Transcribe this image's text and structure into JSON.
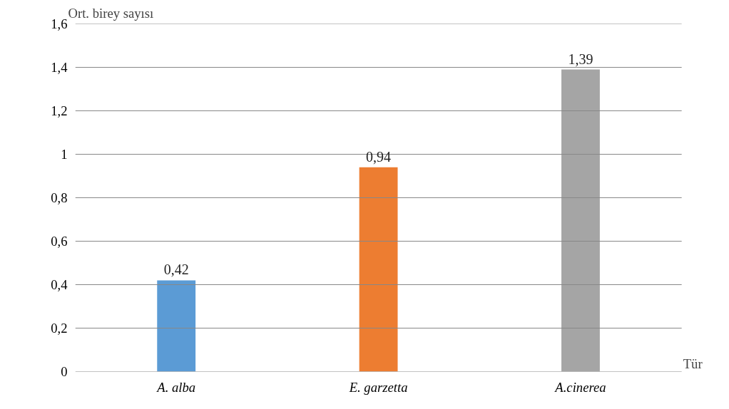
{
  "chart_data": {
    "type": "bar",
    "categories": [
      "A. alba",
      "E. garzetta",
      "A.cinerea"
    ],
    "values": [
      0.42,
      0.94,
      1.39
    ],
    "colors": [
      "#5b9bd5",
      "#ed7d31",
      "#a5a5a5"
    ],
    "value_labels": [
      "0,42",
      "0,94",
      "1,39"
    ],
    "xlabel": "Tür",
    "ylabel": "Ort. birey sayısı",
    "ylim": [
      0,
      1.6
    ],
    "yticks": [
      0,
      {
        "value": 0.2,
        "label": "0,2"
      },
      {
        "value": 0.4,
        "label": "0,4"
      },
      {
        "value": 0.6,
        "label": "0,6"
      },
      {
        "value": 0.8,
        "label": "0,8"
      },
      1,
      {
        "value": 1.2,
        "label": "1,2"
      },
      {
        "value": 1.4,
        "label": "1,4"
      },
      {
        "value": 1.6,
        "label": "1,6"
      }
    ],
    "grid": "y"
  }
}
